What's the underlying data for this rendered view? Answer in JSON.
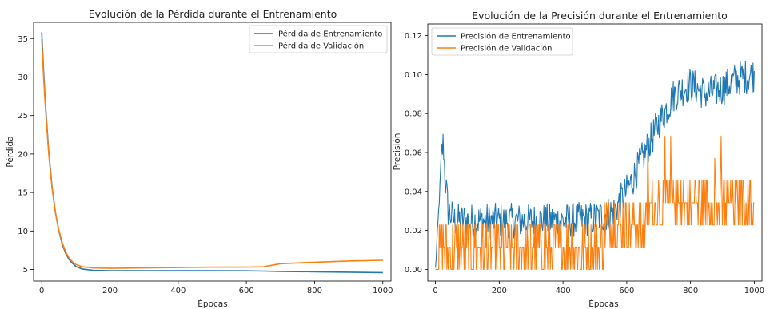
{
  "chart_data": [
    {
      "type": "line",
      "title": "Evolución de la Pérdida durante el Entrenamiento",
      "xlabel": "Épocas",
      "ylabel": "Pérdida",
      "xlim": [
        -24,
        1024
      ],
      "ylim": [
        3.5,
        37.1
      ],
      "xticks": [
        0,
        200,
        400,
        600,
        800,
        1000
      ],
      "yticks": [
        5,
        10,
        15,
        20,
        25,
        30,
        35
      ],
      "legend": "top-right",
      "grid": false,
      "series": [
        {
          "name": "Pérdida de Entrenamiento",
          "color": "#1f77b4",
          "x": [
            0,
            5,
            10,
            20,
            30,
            40,
            50,
            60,
            70,
            80,
            90,
            100,
            120,
            150,
            200,
            300,
            400,
            500,
            600,
            650,
            700,
            800,
            900,
            1000
          ],
          "y": [
            35.8,
            31.0,
            27.0,
            20.5,
            15.8,
            12.4,
            10.0,
            8.3,
            7.1,
            6.3,
            5.8,
            5.4,
            5.05,
            4.9,
            4.85,
            4.85,
            4.85,
            4.85,
            4.83,
            4.8,
            4.75,
            4.7,
            4.65,
            4.6
          ]
        },
        {
          "name": "Pérdida de Validación",
          "color": "#ff7f0e",
          "x": [
            0,
            5,
            10,
            20,
            30,
            40,
            50,
            60,
            70,
            80,
            90,
            100,
            120,
            150,
            200,
            300,
            400,
            500,
            600,
            650,
            680,
            700,
            800,
            900,
            1000
          ],
          "y": [
            34.9,
            30.3,
            26.5,
            20.2,
            15.7,
            12.4,
            10.1,
            8.5,
            7.3,
            6.5,
            6.0,
            5.65,
            5.35,
            5.2,
            5.15,
            5.2,
            5.25,
            5.3,
            5.3,
            5.35,
            5.6,
            5.75,
            5.95,
            6.1,
            6.2
          ]
        }
      ]
    },
    {
      "type": "line",
      "title": "Evolución de la Precisión durante el Entrenamiento",
      "xlabel": "Épocas",
      "ylabel": "Precisión",
      "xlim": [
        -24,
        1024
      ],
      "ylim": [
        -0.006,
        0.126
      ],
      "xticks": [
        0,
        200,
        400,
        600,
        800,
        1000
      ],
      "yticks": [
        0.0,
        0.02,
        0.04,
        0.06,
        0.08,
        0.1,
        0.12
      ],
      "legend": "top-left",
      "grid": false,
      "series": [
        {
          "name": "Precisión de Entrenamiento",
          "color": "#1f77b4",
          "x": [
            0,
            10,
            20,
            25,
            30,
            40,
            60,
            100,
            200,
            300,
            400,
            500,
            560,
            600,
            650,
            700,
            750,
            800,
            850,
            900,
            950,
            1000
          ],
          "y": [
            0.0,
            0.03,
            0.06,
            0.065,
            0.048,
            0.03,
            0.025,
            0.025,
            0.025,
            0.025,
            0.025,
            0.026,
            0.03,
            0.04,
            0.057,
            0.075,
            0.09,
            0.095,
            0.09,
            0.093,
            0.098,
            0.1
          ],
          "noise": 0.009
        },
        {
          "name": "Precisión de Validación",
          "color": "#ff7f0e",
          "x": [
            0,
            10,
            30,
            100,
            200,
            300,
            400,
            500,
            600,
            650,
            700,
            750,
            800,
            900,
            1000
          ],
          "y": [
            0.003,
            0.01,
            0.016,
            0.015,
            0.015,
            0.015,
            0.015,
            0.016,
            0.02,
            0.028,
            0.03,
            0.032,
            0.032,
            0.032,
            0.032
          ],
          "steps": 0.0114
        }
      ]
    }
  ]
}
